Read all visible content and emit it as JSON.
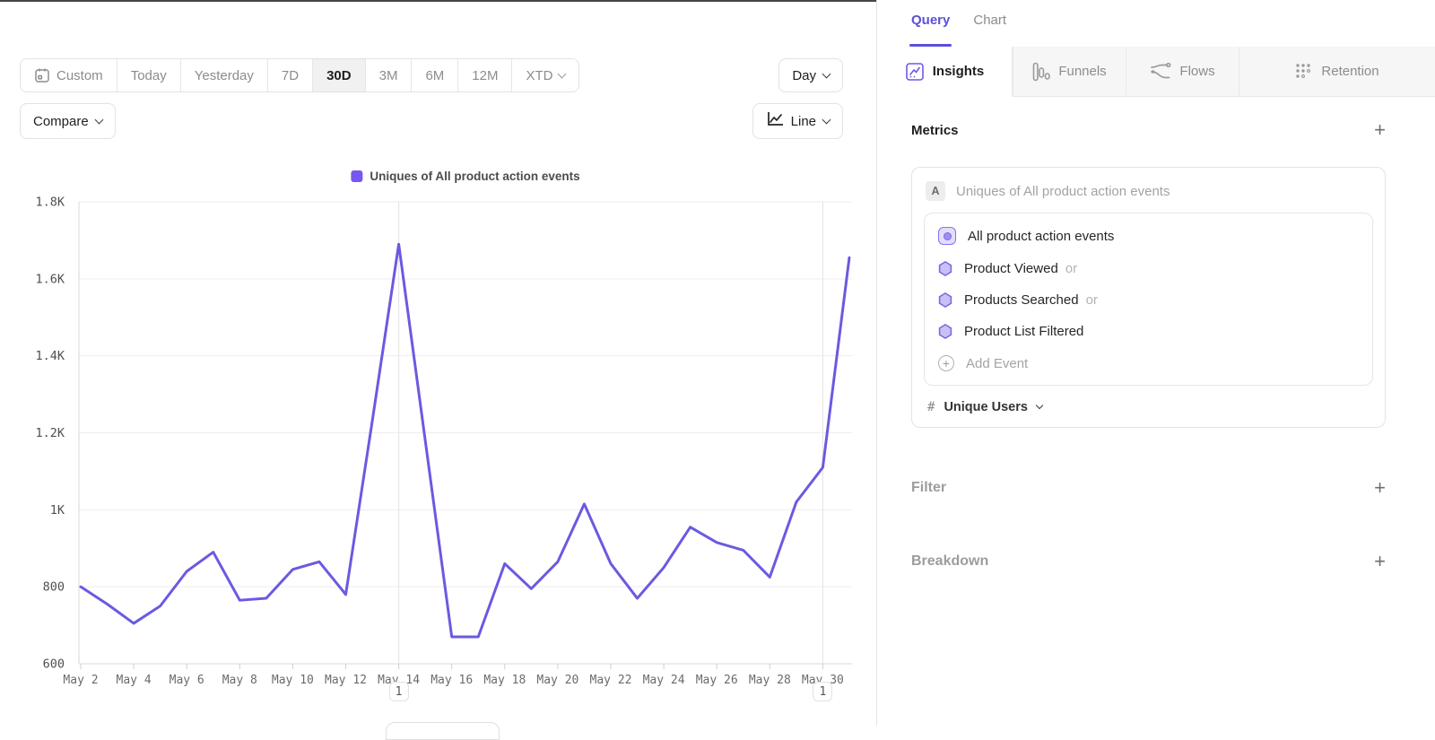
{
  "toolbar": {
    "date_ranges": [
      "Custom",
      "Today",
      "Yesterday",
      "7D",
      "30D",
      "3M",
      "6M",
      "12M",
      "XTD"
    ],
    "selected_range": "30D",
    "granularity": "Day",
    "compare_label": "Compare",
    "chart_type_label": "Line"
  },
  "chart_data": {
    "type": "line",
    "legend_position": "top-center",
    "grid": true,
    "series": [
      {
        "name": "Uniques of All product action events",
        "color": "#6a5ae1",
        "swatch_color": "#7857f0",
        "values": [
          800,
          755,
          705,
          750,
          840,
          890,
          765,
          770,
          845,
          865,
          780,
          1230,
          1690,
          1180,
          670,
          670,
          860,
          795,
          865,
          1015,
          860,
          770,
          850,
          955,
          915,
          895,
          825,
          1020,
          1110,
          1655
        ]
      }
    ],
    "x": [
      "May 2",
      "May 3",
      "May 4",
      "May 5",
      "May 6",
      "May 7",
      "May 8",
      "May 9",
      "May 10",
      "May 11",
      "May 12",
      "May 13",
      "May 14",
      "May 15",
      "May 16",
      "May 17",
      "May 18",
      "May 19",
      "May 20",
      "May 21",
      "May 22",
      "May 23",
      "May 24",
      "May 25",
      "May 26",
      "May 27",
      "May 28",
      "May 29",
      "May 30",
      "May 31"
    ],
    "xtick_labels": [
      "May 2",
      "May 4",
      "May 6",
      "May 8",
      "May 10",
      "May 12",
      "May 14",
      "May 16",
      "May 18",
      "May 20",
      "May 22",
      "May 24",
      "May 26",
      "May 28",
      "May 30"
    ],
    "ylim": [
      600,
      1800
    ],
    "ytick_values": [
      600,
      800,
      1000,
      1200,
      1400,
      1600,
      1800
    ],
    "ytick_labels": [
      "600",
      "800",
      "1K",
      "1.2K",
      "1.4K",
      "1.6K",
      "1.8K"
    ],
    "annotations": [
      {
        "x": "May 14",
        "label": "1"
      },
      {
        "x": "May 30",
        "label": "1"
      }
    ]
  },
  "query_panel": {
    "tabs": [
      {
        "label": "Query",
        "active": true
      },
      {
        "label": "Chart",
        "active": false
      }
    ],
    "builder_tabs": [
      {
        "label": "Insights",
        "icon": "insights-icon",
        "active": true
      },
      {
        "label": "Funnels",
        "icon": "funnels-icon",
        "active": false
      },
      {
        "label": "Flows",
        "icon": "flows-icon",
        "active": false
      },
      {
        "label": "Retention",
        "icon": "retention-icon",
        "active": false
      }
    ],
    "metrics": {
      "heading": "Metrics",
      "add_label": "+",
      "group_letter": "A",
      "metric_title": "Uniques of All product action events",
      "events": [
        {
          "name": "All product action events",
          "suffix": "",
          "icon": "event-group-icon"
        },
        {
          "name": "Product Viewed",
          "suffix": "or",
          "icon": "hexagon-icon"
        },
        {
          "name": "Products Searched",
          "suffix": "or",
          "icon": "hexagon-icon"
        },
        {
          "name": "Product List Filtered",
          "suffix": "",
          "icon": "hexagon-icon"
        }
      ],
      "add_event_label": "Add Event",
      "aggregation": {
        "symbol": "#",
        "label": "Unique Users"
      }
    },
    "filter": {
      "heading": "Filter",
      "add_label": "+"
    },
    "breakdown": {
      "heading": "Breakdown",
      "add_label": "+"
    }
  }
}
